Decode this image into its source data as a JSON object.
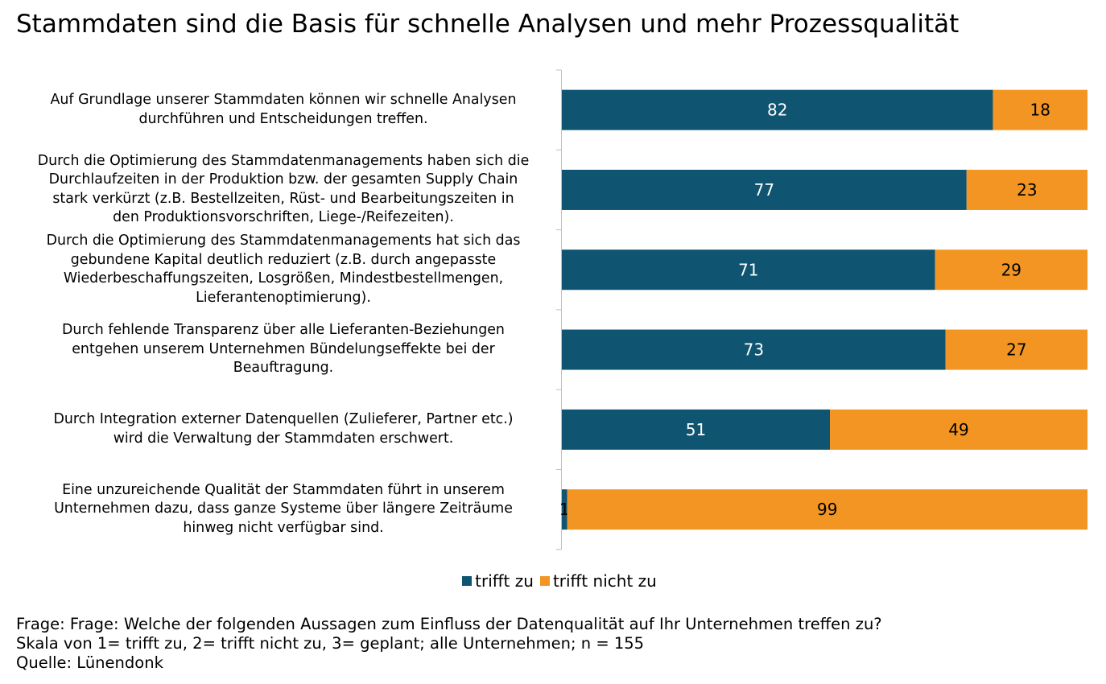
{
  "title": "Stammdaten sind die Basis für schnelle Analysen und mehr Prozessqualität",
  "colors": {
    "trifft_zu": "#0f5470",
    "trifft_nicht_zu": "#f29522",
    "axis": "#bfbfbf",
    "bar_label": "#ffffff",
    "bar_label_dark": "#000000"
  },
  "legend": {
    "items": [
      {
        "label": "trifft zu",
        "color": "#0f5470"
      },
      {
        "label": "trifft nicht zu",
        "color": "#f29522"
      }
    ]
  },
  "chart_data": {
    "type": "bar",
    "orientation": "horizontal",
    "stacked": "100%",
    "categories": [
      [
        "Auf Grundlage unserer Stammdaten können wir schnelle Analysen",
        "durchführen und Entscheidungen treffen."
      ],
      [
        "Durch die Optimierung des Stammdatenmanagements  haben sich die",
        "Durchlaufzeiten in der Produktion bzw. der gesamten Supply Chain",
        "stark verkürzt (z.B. Bestellzeiten, Rüst- und Bearbeitungszeiten in",
        "den Produktionsvorschriften, Liege-/Reifezeiten)."
      ],
      [
        "Durch die Optimierung des Stammdatenmanagements  hat sich das",
        "gebundene Kapital deutlich reduziert (z.B. durch angepasste",
        "Wiederbeschaffungszeiten, Losgrößen, Mindestbestellmengen,",
        "Lieferantenoptimierung)."
      ],
      [
        "Durch fehlende Transparenz über alle Lieferanten-Beziehungen",
        "entgehen unserem Unternehmen Bündelungseffekte bei der",
        "Beauftragung."
      ],
      [
        "Durch Integration externer Datenquellen (Zulieferer, Partner etc.)",
        "wird die Verwaltung der Stammdaten erschwert."
      ],
      [
        "Eine unzureichende Qualität der Stammdaten führt in unserem",
        "Unternehmen dazu, dass ganze Systeme über längere Zeiträume",
        "hinweg nicht verfügbar sind."
      ]
    ],
    "series": [
      {
        "name": "trifft zu",
        "values": [
          82,
          77,
          71,
          73,
          51,
          1
        ]
      },
      {
        "name": "trifft nicht zu",
        "values": [
          18,
          23,
          29,
          27,
          49,
          99
        ]
      }
    ],
    "xlim": [
      0,
      100
    ],
    "legend_position": "bottom",
    "grid": false
  },
  "footer": {
    "line1": "Frage: Frage: Welche der folgenden Aussagen zum Einfluss der Datenqualität auf Ihr Unternehmen treffen zu?",
    "line2": "Skala von 1= trifft zu, 2= trifft nicht zu, 3= geplant; alle Unternehmen; n = 155",
    "line3": "Quelle: Lünendonk"
  }
}
